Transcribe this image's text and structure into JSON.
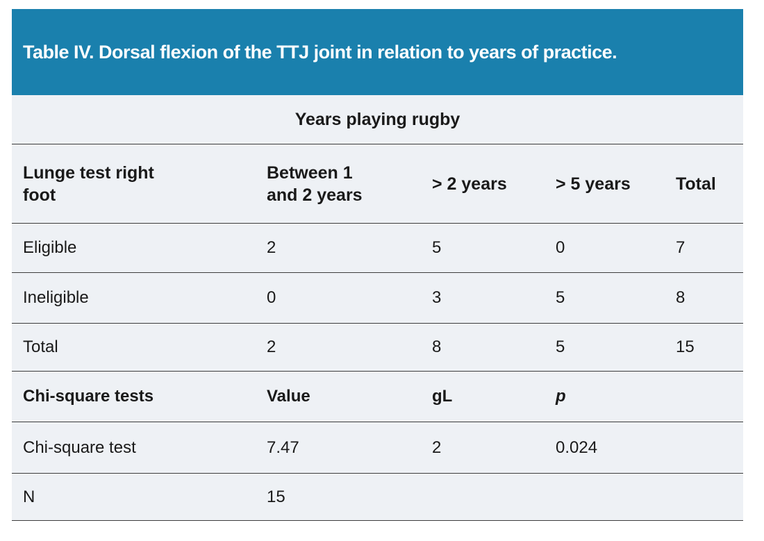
{
  "table": {
    "title": "Table IV. Dorsal flexion of the TTJ joint in relation to years of practice.",
    "span_header": "Years playing rugby",
    "columns": [
      "Lunge test right foot",
      "Between 1 and 2 years",
      "> 2 years",
      "> 5 years",
      "Total"
    ],
    "rows": [
      {
        "label": "Eligible",
        "values": [
          "2",
          "5",
          "0",
          "7"
        ]
      },
      {
        "label": "Ineligible",
        "values": [
          "0",
          "3",
          "5",
          "8"
        ]
      },
      {
        "label": "Total",
        "values": [
          "2",
          "8",
          "5",
          "15"
        ]
      }
    ],
    "chi": {
      "columns": [
        "Chi-square tests",
        "Value",
        "gL",
        "p"
      ],
      "rows": [
        {
          "label": "Chi-square test",
          "values": [
            "7.47",
            "2",
            "0.024",
            ""
          ]
        },
        {
          "label": "N",
          "values": [
            "15",
            "",
            "",
            ""
          ]
        }
      ]
    }
  },
  "chart_data": {
    "type": "table",
    "title": "Table IV. Dorsal flexion of the TTJ joint in relation to years of practice.",
    "group_header": "Years playing rugby",
    "columns": [
      "Lunge test right foot",
      "Between 1 and 2 years",
      "> 2 years",
      "> 5 years",
      "Total"
    ],
    "rows": [
      [
        "Eligible",
        2,
        5,
        0,
        7
      ],
      [
        "Ineligible",
        0,
        3,
        5,
        8
      ],
      [
        "Total",
        2,
        8,
        5,
        15
      ]
    ],
    "statistics": {
      "header": [
        "Chi-square tests",
        "Value",
        "gL",
        "p"
      ],
      "chi_square_test": {
        "value": 7.47,
        "gL": 2,
        "p": 0.024
      },
      "N": 15
    }
  },
  "colors": {
    "header_bg": "#1a80ad",
    "body_bg": "#eef1f5",
    "divider": "#3d3d3d",
    "text": "#1a1a1a",
    "title_text": "#ffffff"
  }
}
